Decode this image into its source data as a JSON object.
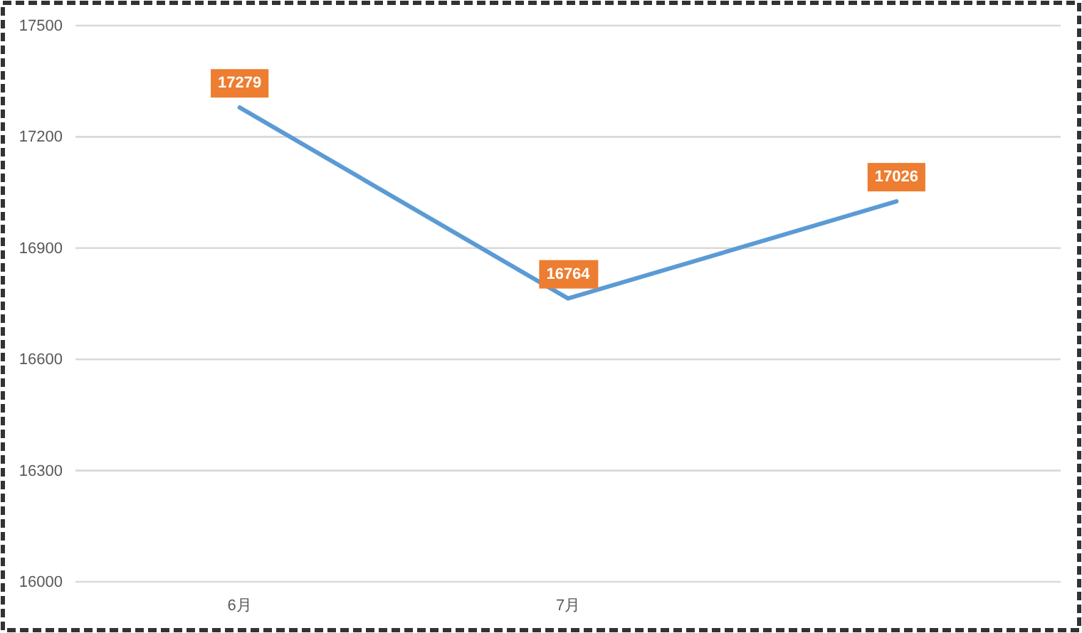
{
  "chart_data": {
    "type": "line",
    "categories": [
      "6月",
      "7月",
      null
    ],
    "series": [
      {
        "color": "#5b9bd5",
        "values": [
          17279,
          16764,
          17026
        ]
      }
    ],
    "ylim": [
      16000,
      17500
    ],
    "yticks": [
      16000,
      16300,
      16600,
      16900,
      17200,
      17500
    ],
    "grid": "y",
    "marker": "none",
    "line_style": "solid",
    "data_labels": true
  }
}
